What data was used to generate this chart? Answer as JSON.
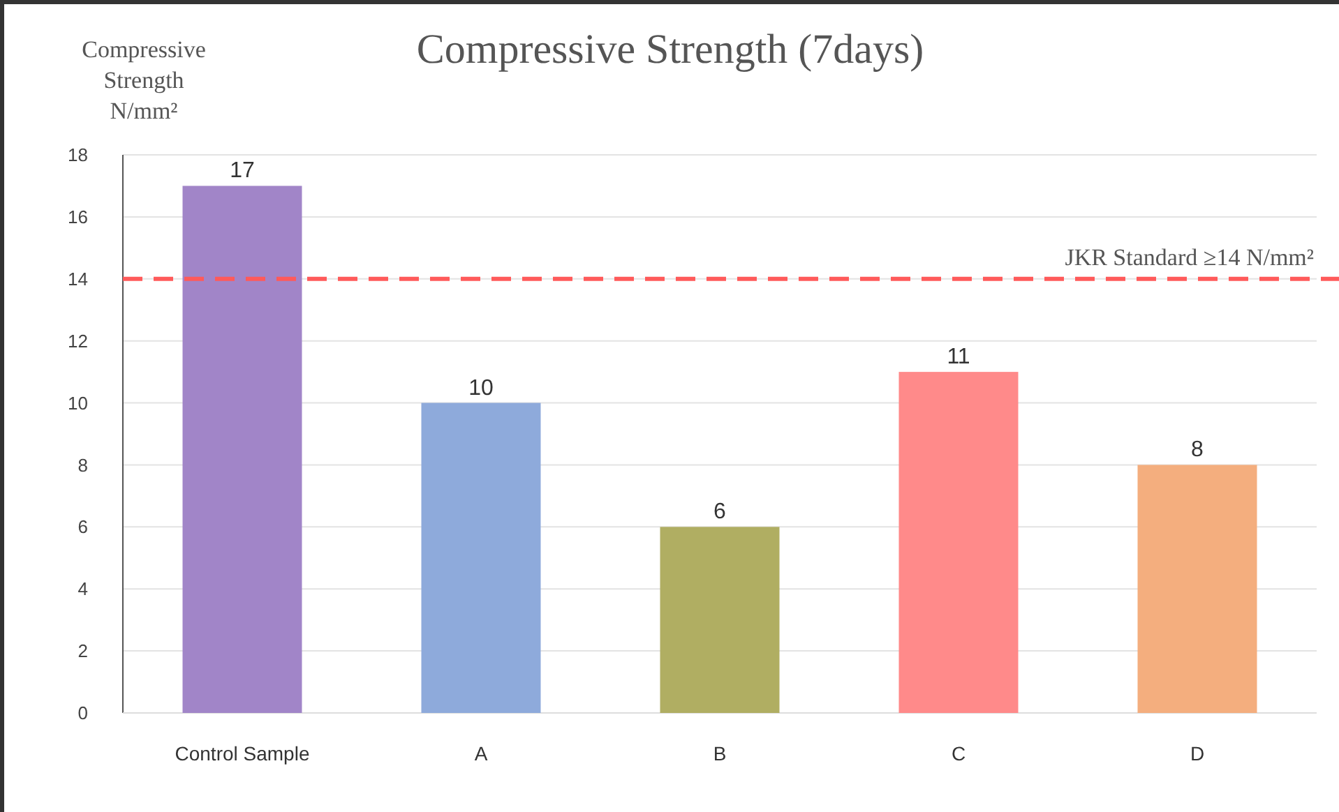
{
  "chart_data": {
    "type": "bar",
    "title": "Compressive Strength (7days)",
    "ylabel": "Compressive Strength N/mm²",
    "categories": [
      "Control Sample",
      "A",
      "B",
      "C",
      "D"
    ],
    "values": [
      17,
      10,
      6,
      11,
      8
    ],
    "colors": [
      "#a185c8",
      "#8eaadb",
      "#b0ae62",
      "#ff8a8a",
      "#f4ae7e"
    ],
    "ylim": [
      0,
      18
    ],
    "yticks": [
      0,
      2,
      4,
      6,
      8,
      10,
      12,
      14,
      16,
      18
    ],
    "grid": "y",
    "data_labels": true,
    "ref_lines": [
      {
        "axis": "y",
        "value": 14,
        "label": "JKR Standard ≥14 N/mm²",
        "color": "#ff5a5a",
        "line_style": "dashed"
      }
    ]
  }
}
